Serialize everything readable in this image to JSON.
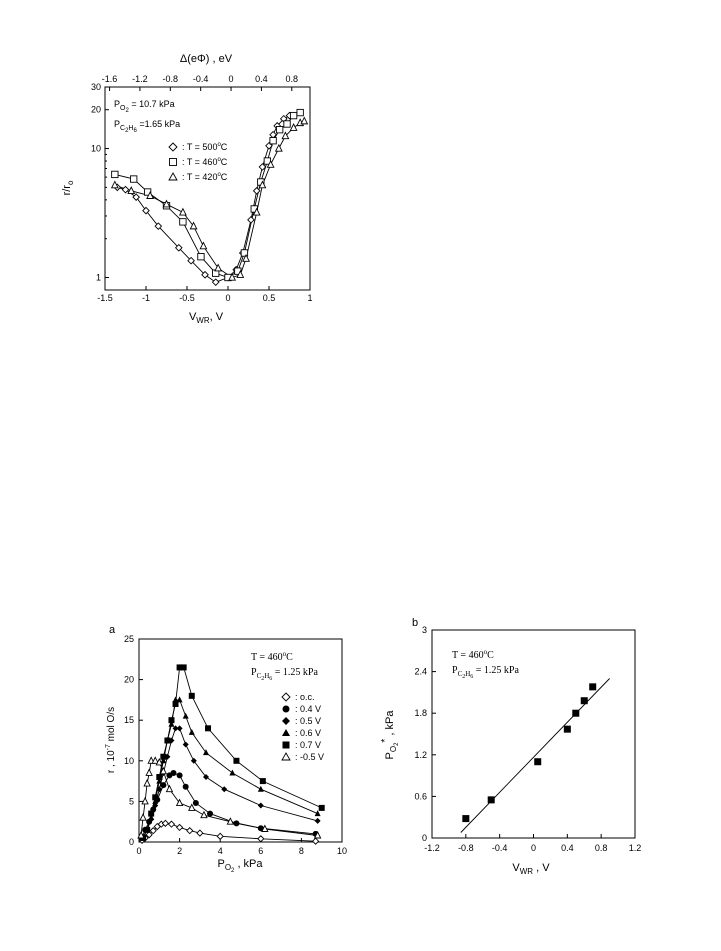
{
  "chart_data": [
    {
      "type": "scatter",
      "panel": "",
      "xlabel": "V",
      "xlabel_sub": "WR",
      "xlabel_suffix": ", V",
      "ylabel": "r/r",
      "ylabel_sub": "o",
      "top_xlabel": "Δ(eΦ) , eV",
      "xlim": [
        -1.5,
        1.0
      ],
      "ylim": [
        0.8,
        30
      ],
      "yscale": "log",
      "xticks": [
        "-1.5",
        "-1",
        "-0.5",
        "0",
        "0.5",
        "1"
      ],
      "top_xticks": [
        "-1.6",
        "-1.2",
        "-0.8",
        "-0.4",
        "0",
        "0.4",
        "0.8"
      ],
      "yticks": [
        "1",
        "10",
        "20",
        "30"
      ],
      "annotations": [
        {
          "main": "P",
          "sub": "O",
          "sub2": "2",
          "rest": " = 10.7 kPa"
        },
        {
          "main": "P",
          "sub": "C",
          "sub2": "2",
          "sub3": "H",
          "sub4": "6",
          "rest": " =1.65 kPa"
        }
      ],
      "legend": {
        "position": "left",
        "entries": [
          {
            "marker": "diamond",
            "label": ": T = 500",
            "sup": "o",
            "unit": "C"
          },
          {
            "marker": "square",
            "label": ": T = 460",
            "sup": "o",
            "unit": "C"
          },
          {
            "marker": "triangle",
            "label": ": T = 420",
            "sup": "o",
            "unit": "C"
          }
        ]
      },
      "grid": false,
      "series": [
        {
          "marker": "diamond",
          "x": [
            -1.35,
            -1.25,
            -1.12,
            -1.0,
            -0.85,
            -0.6,
            -0.45,
            -0.28,
            -0.15,
            0.0,
            0.1,
            0.18,
            0.28,
            0.35,
            0.42,
            0.5,
            0.55,
            0.6,
            0.68,
            0.75
          ],
          "y": [
            5.0,
            4.8,
            4.2,
            3.3,
            2.5,
            1.7,
            1.35,
            1.05,
            0.92,
            1.0,
            1.15,
            1.55,
            2.8,
            4.7,
            7.2,
            10.5,
            12.8,
            15.0,
            17.0,
            18.0
          ]
        },
        {
          "marker": "square",
          "x": [
            -1.38,
            -1.15,
            -0.98,
            -0.75,
            -0.55,
            -0.33,
            -0.15,
            0.0,
            0.12,
            0.2,
            0.32,
            0.4,
            0.48,
            0.55,
            0.63,
            0.72,
            0.8,
            0.88
          ],
          "y": [
            6.3,
            5.8,
            4.6,
            3.6,
            2.7,
            1.45,
            1.08,
            1.0,
            1.12,
            1.55,
            3.4,
            5.5,
            8.0,
            11.5,
            14.0,
            15.5,
            18.0,
            19.0
          ]
        },
        {
          "marker": "triangle",
          "x": [
            -1.38,
            -1.18,
            -0.95,
            -0.75,
            -0.55,
            -0.42,
            -0.3,
            -0.12,
            0.05,
            0.15,
            0.22,
            0.35,
            0.42,
            0.52,
            0.62,
            0.7,
            0.8,
            0.88,
            0.93
          ],
          "y": [
            5.2,
            4.7,
            4.3,
            3.7,
            3.2,
            2.5,
            1.75,
            1.18,
            1.0,
            1.05,
            1.4,
            3.2,
            5.2,
            7.5,
            10.0,
            12.5,
            14.5,
            15.8,
            16.3
          ]
        }
      ]
    },
    {
      "type": "scatter",
      "panel": "a",
      "xlabel": "P",
      "xlabel_sub": "O",
      "xlabel_sub2": "2",
      "xlabel_suffix": " , kPa",
      "ylabel": "r , 10",
      "ylabel_sup": "-7",
      "ylabel_suffix": " mol O/s",
      "xlim": [
        0,
        10
      ],
      "ylim": [
        0,
        25
      ],
      "xticks": [
        "0",
        "2",
        "4",
        "6",
        "8",
        "10"
      ],
      "yticks": [
        "0",
        "5",
        "10",
        "15",
        "20",
        "25"
      ],
      "annotations": [
        {
          "main": "T = 460",
          "sup": "o",
          "rest": "C"
        },
        {
          "main": "P",
          "sub": "C",
          "sub2": "2",
          "sub3": "H",
          "sub4": "6",
          "rest": " = 1.25 kPa"
        }
      ],
      "legend": {
        "position": "right",
        "entries": [
          {
            "marker": "open-diamond",
            "label": ": o.c."
          },
          {
            "marker": "filled-circle",
            "label": ": 0.4 V"
          },
          {
            "marker": "filled-diamond",
            "label": ": 0.5 V"
          },
          {
            "marker": "filled-triangle",
            "label": ": 0.6 V"
          },
          {
            "marker": "filled-square",
            "label": ": 0.7 V"
          },
          {
            "marker": "open-triangle",
            "label": ": -0.5 V"
          }
        ]
      },
      "grid": false,
      "series": [
        {
          "marker": "open-diamond",
          "x": [
            0.15,
            0.3,
            0.5,
            0.7,
            0.9,
            1.1,
            1.3,
            1.6,
            2.0,
            2.5,
            3.0,
            4.0,
            6.0,
            8.7
          ],
          "y": [
            0.2,
            0.5,
            0.9,
            1.4,
            1.9,
            2.2,
            2.3,
            2.2,
            1.8,
            1.4,
            1.1,
            0.7,
            0.4,
            0.1
          ]
        },
        {
          "marker": "filled-circle",
          "x": [
            0.15,
            0.3,
            0.5,
            0.7,
            0.9,
            1.2,
            1.5,
            1.7,
            2.0,
            2.3,
            2.8,
            3.5,
            4.8,
            6.0,
            8.7
          ],
          "y": [
            0.5,
            1.5,
            2.5,
            4.0,
            5.2,
            7.0,
            8.2,
            8.5,
            8.2,
            6.8,
            4.8,
            3.5,
            2.3,
            1.7,
            1.0
          ]
        },
        {
          "marker": "filled-diamond",
          "x": [
            0.2,
            0.4,
            0.6,
            0.8,
            1.0,
            1.2,
            1.4,
            1.6,
            1.8,
            2.0,
            2.3,
            2.7,
            3.3,
            4.2,
            6.0,
            8.8
          ],
          "y": [
            0.6,
            1.5,
            2.8,
            4.5,
            6.5,
            8.5,
            10.5,
            12.5,
            14.0,
            14.0,
            12.0,
            10.0,
            8.0,
            6.5,
            4.5,
            2.6
          ]
        },
        {
          "marker": "filled-triangle",
          "x": [
            0.2,
            0.4,
            0.6,
            0.8,
            1.0,
            1.2,
            1.4,
            1.6,
            1.8,
            2.0,
            2.3,
            2.6,
            3.3,
            4.6,
            6.0,
            8.8
          ],
          "y": [
            0.6,
            1.5,
            3.0,
            5.0,
            7.5,
            10.0,
            12.5,
            14.5,
            17.5,
            17.5,
            15.5,
            13.5,
            11.0,
            8.5,
            6.5,
            3.5
          ]
        },
        {
          "marker": "filled-square",
          "x": [
            0.2,
            0.4,
            0.6,
            0.8,
            1.0,
            1.2,
            1.4,
            1.6,
            1.8,
            2.0,
            2.2,
            2.6,
            3.4,
            4.8,
            6.1,
            9.0
          ],
          "y": [
            0.5,
            1.5,
            3.5,
            5.5,
            8.0,
            10.5,
            12.5,
            15.0,
            17.0,
            21.5,
            21.5,
            18.0,
            14.0,
            10.0,
            7.5,
            4.2
          ]
        },
        {
          "marker": "open-triangle",
          "x": [
            0.1,
            0.2,
            0.3,
            0.4,
            0.5,
            0.6,
            0.8,
            1.0,
            1.2,
            1.5,
            2.0,
            2.6,
            3.2,
            4.5,
            6.2,
            8.8
          ],
          "y": [
            0.8,
            3.0,
            5.0,
            7.2,
            8.5,
            10.0,
            10.0,
            9.8,
            8.7,
            6.5,
            4.8,
            4.2,
            3.3,
            2.5,
            1.6,
            0.8
          ]
        }
      ]
    },
    {
      "type": "scatter",
      "panel": "b",
      "xlabel": "V",
      "xlabel_sub": "WR",
      "xlabel_suffix": " , V",
      "ylabel": "P",
      "ylabel_sub": "O",
      "ylabel_sub2": "2",
      "ylabel_sup": "*",
      "ylabel_suffix": " , kPa",
      "xlim": [
        -1.2,
        1.2
      ],
      "ylim": [
        0,
        3
      ],
      "xticks": [
        "-1.2",
        "-0.8",
        "-0.4",
        "0",
        "0.4",
        "0.8",
        "1.2"
      ],
      "yticks": [
        "0",
        "0.6",
        "1.2",
        "1.8",
        "2.4",
        "3"
      ],
      "annotations": [
        {
          "main": "T = 460",
          "sup": "o",
          "rest": "C"
        },
        {
          "main": "P",
          "sub": "C",
          "sub2": "2",
          "sub3": "H",
          "sub4": "6",
          "rest": " = 1.25 kPa"
        }
      ],
      "grid": false,
      "series": [
        {
          "marker": "filled-square",
          "x": [
            -0.8,
            -0.5,
            0.05,
            0.4,
            0.5,
            0.6,
            0.7
          ],
          "y": [
            0.28,
            0.55,
            1.1,
            1.57,
            1.8,
            1.98,
            2.18
          ]
        }
      ],
      "fit_line": {
        "x": [
          -0.86,
          0.9
        ],
        "y": [
          0.08,
          2.3
        ]
      }
    }
  ]
}
